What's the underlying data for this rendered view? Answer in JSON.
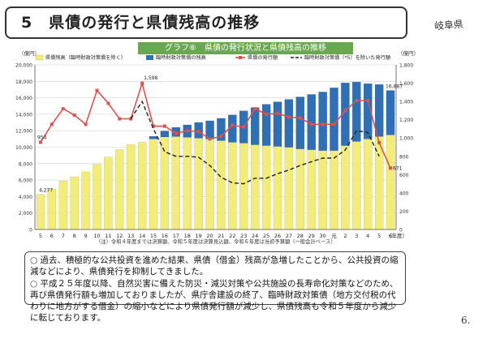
{
  "page": {
    "title": "5　県債の発行と県債残高の推移",
    "stamp": "岐阜県",
    "page_number": "6.",
    "notes": [
      "過去、積極的な公共投資を進めた結果、県債（借金）残高が急増したことから、公共投資の縮減などにより、県債発行を抑制してきました。",
      "平成２５年度以降、自然災害に備えた防災・減災対策や公共施設の長寿命化対策などのため、再び県債発行額も増加しておりましたが、県庁舎建設の終了、臨時財政対策債（地方交付税の代わりに地方がする借金）の縮小などにより県債発行額が減少し、県債残高も令和５年度から減少に転じております。"
    ],
    "note_bullet": "○"
  },
  "chart_data": {
    "type": "bar",
    "title": "グラフ⑥　県債の発行状況と県債残高の推移",
    "left_unit": "（億円）",
    "right_unit": "（億円）",
    "x_unit": "（年度）",
    "footnote": "（注）令和４年度までは決算額、令和５年度は決算見込額、令和６年度は当初予算額（一般会計ベース）",
    "categories": [
      "5",
      "6",
      "7",
      "8",
      "9",
      "10",
      "11",
      "12",
      "13",
      "14",
      "15",
      "16",
      "17",
      "18",
      "19",
      "20",
      "21",
      "22",
      "23",
      "24",
      "25",
      "26",
      "27",
      "28",
      "29",
      "30",
      "元",
      "2",
      "3",
      "4",
      "5",
      "6"
    ],
    "left_ylim": [
      0,
      20000
    ],
    "left_ticks": [
      "0",
      "2,000",
      "4,000",
      "6,000",
      "8,000",
      "10,000",
      "12,000",
      "14,000",
      "16,000",
      "18,000",
      "20,000"
    ],
    "right_ylim": [
      0,
      1800
    ],
    "right_ticks": [
      "0",
      "200",
      "400",
      "600",
      "800",
      "1,000",
      "1,200",
      "1,400",
      "1,600",
      "1,800"
    ],
    "series": [
      {
        "name": "県債残高（臨時財政対策債を除く）",
        "color": "#f2ec7a",
        "values": [
          4277,
          4900,
          5900,
          6400,
          7000,
          7900,
          8800,
          9700,
          10300,
          10600,
          11000,
          11250,
          11300,
          11200,
          11100,
          11000,
          10800,
          10600,
          10500,
          10300,
          10200,
          10100,
          10000,
          9800,
          9700,
          9600,
          9600,
          10200,
          10700,
          11000,
          11300,
          11500
        ]
      },
      {
        "name": "臨時財政対策債の残高",
        "color": "#2f6fb6",
        "values": [
          0,
          0,
          0,
          0,
          0,
          0,
          0,
          0,
          0,
          0,
          300,
          700,
          1100,
          1500,
          1900,
          2200,
          2700,
          3300,
          3900,
          4500,
          5000,
          5400,
          5800,
          6300,
          6700,
          7100,
          7600,
          7600,
          7200,
          6700,
          6300,
          5387
        ]
      },
      {
        "name": "県債の発行額",
        "color": "#d9534f",
        "values": [
          954,
          1150,
          1320,
          1250,
          1150,
          1520,
          1380,
          1210,
          1210,
          1598,
          1130,
          1130,
          1050,
          1080,
          1070,
          990,
          1020,
          1140,
          1120,
          1320,
          1260,
          1270,
          1230,
          1220,
          1150,
          1150,
          1150,
          1300,
          1410,
          1410,
          950,
          671
        ]
      },
      {
        "name": "臨時財政対策債（*5）を除いた発行額",
        "color": "#222222",
        "values": [
          null,
          null,
          null,
          null,
          null,
          null,
          null,
          null,
          1210,
          1400,
          1100,
          850,
          800,
          800,
          790,
          700,
          570,
          510,
          500,
          560,
          560,
          610,
          650,
          700,
          740,
          780,
          780,
          870,
          1080,
          1060,
          800,
          null
        ]
      }
    ],
    "data_labels": [
      "4,277",
      "954",
      "1,598",
      "16,887",
      "671"
    ],
    "legend_placement": "top"
  }
}
